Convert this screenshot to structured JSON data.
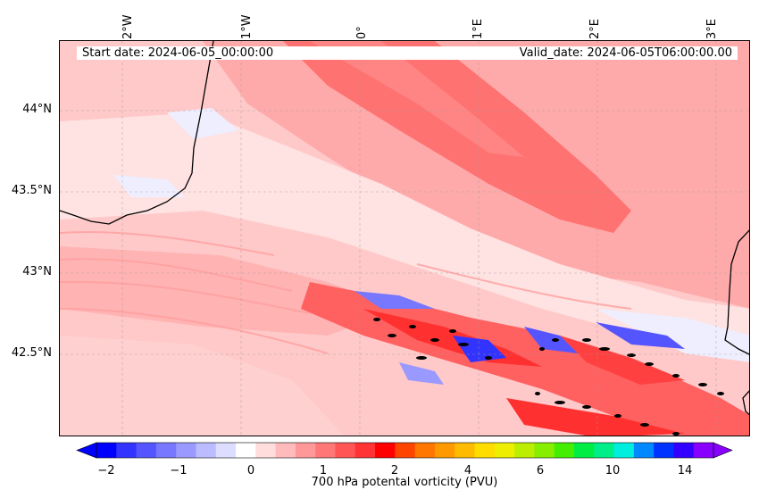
{
  "map": {
    "start_date": "Start date: 2024-06-05_00:00:00",
    "valid_date": "Valid_date: 2024-06-05T06:00:00.00",
    "lon_ticks": [
      "2°W",
      "1°W",
      "0°",
      "1°E",
      "2°E",
      "3°E"
    ],
    "lat_ticks": [
      "44°N",
      "43.5°N",
      "43°N",
      "42.5°N"
    ]
  },
  "colorbar": {
    "label": "700 hPa potental vorticity (PVU)",
    "ticks": [
      "−2",
      "−1",
      "0",
      "1",
      "2",
      "4",
      "6",
      "10",
      "14"
    ],
    "colors": [
      "#0000ff",
      "#3333ff",
      "#5555ff",
      "#7777ff",
      "#9999ff",
      "#bbbbff",
      "#ddddff",
      "#ffffff",
      "#ffdddd",
      "#ffbbbb",
      "#ff9999",
      "#ff7777",
      "#ff5555",
      "#ff3333",
      "#ff0000",
      "#ff4400",
      "#ff7700",
      "#ff9900",
      "#ffbb00",
      "#ffdd00",
      "#eeee00",
      "#bbee00",
      "#88ee00",
      "#44ee00",
      "#00ee44",
      "#00ee88",
      "#00eedd",
      "#0088ff",
      "#0033ff",
      "#3300ff",
      "#8800ff"
    ]
  }
}
